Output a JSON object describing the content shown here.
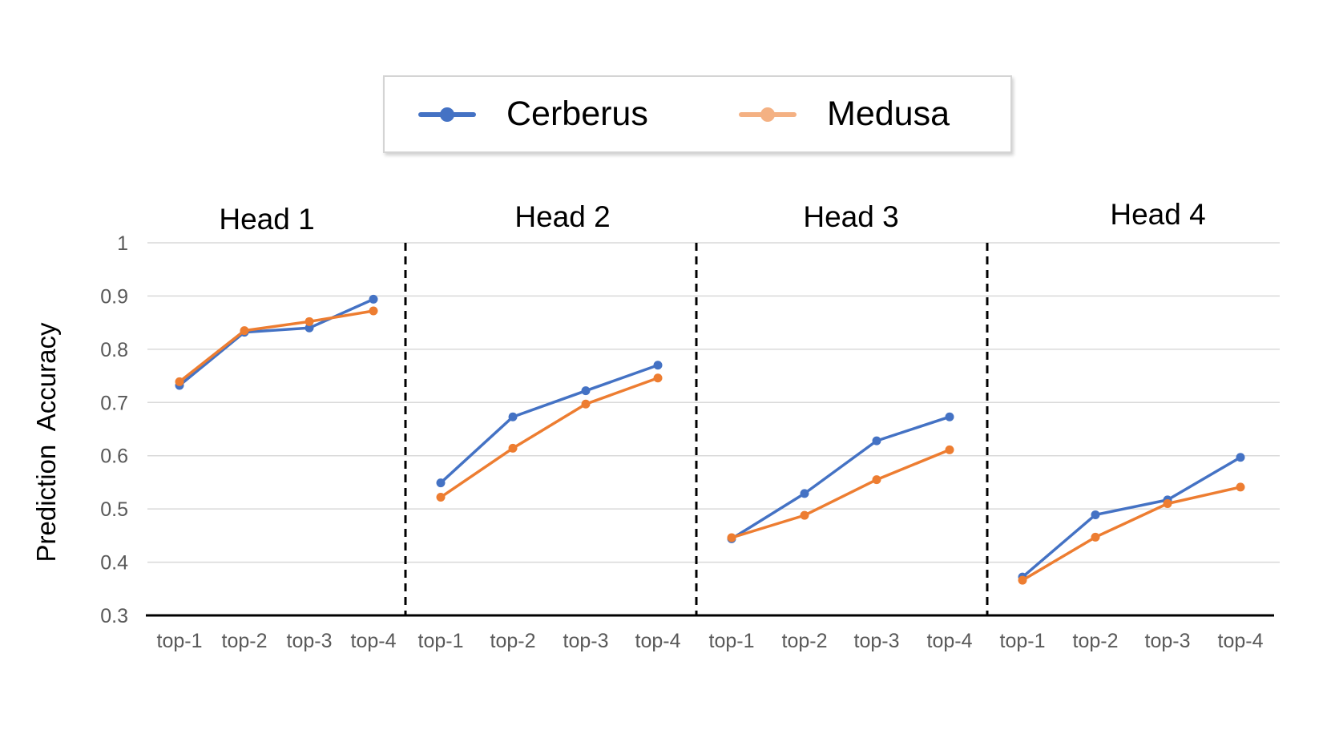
{
  "chart_data": {
    "type": "line",
    "ylabel": "Prediction  Accuracy",
    "ylim": [
      0.3,
      1
    ],
    "yticks": [
      "0.3",
      "0.4",
      "0.5",
      "0.6",
      "0.7",
      "0.8",
      "0.9",
      "1"
    ],
    "grid": true,
    "legend_position": "top-center",
    "categories": [
      "top-1",
      "top-2",
      "top-3",
      "top-4"
    ],
    "panels": [
      {
        "title": "Head 1",
        "series": [
          {
            "name": "Cerberus",
            "color": "#4472c4",
            "values": [
              0.732,
              0.832,
              0.84,
              0.894
            ]
          },
          {
            "name": "Medusa",
            "color": "#ed7d31",
            "values": [
              0.739,
              0.835,
              0.852,
              0.872
            ]
          }
        ]
      },
      {
        "title": "Head 2",
        "series": [
          {
            "name": "Cerberus",
            "color": "#4472c4",
            "values": [
              0.549,
              0.673,
              0.722,
              0.77
            ]
          },
          {
            "name": "Medusa",
            "color": "#ed7d31",
            "values": [
              0.522,
              0.614,
              0.697,
              0.746
            ]
          }
        ]
      },
      {
        "title": "Head 3",
        "series": [
          {
            "name": "Cerberus",
            "color": "#4472c4",
            "values": [
              0.444,
              0.529,
              0.628,
              0.673
            ]
          },
          {
            "name": "Medusa",
            "color": "#ed7d31",
            "values": [
              0.446,
              0.488,
              0.555,
              0.611
            ]
          }
        ]
      },
      {
        "title": "Head 4",
        "series": [
          {
            "name": "Cerberus",
            "color": "#4472c4",
            "values": [
              0.372,
              0.489,
              0.517,
              0.597
            ]
          },
          {
            "name": "Medusa",
            "color": "#ed7d31",
            "values": [
              0.366,
              0.447,
              0.51,
              0.541
            ]
          }
        ]
      }
    ]
  },
  "legend": [
    {
      "label": "Cerberus",
      "color": "#4472c4"
    },
    {
      "label": "Medusa",
      "color": "#f4b183"
    }
  ]
}
